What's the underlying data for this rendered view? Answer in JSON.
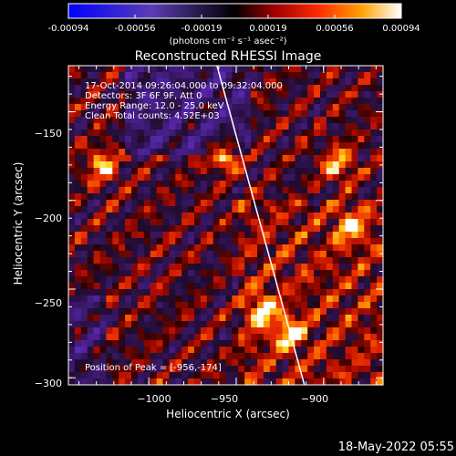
{
  "colorbar": {
    "ticks": [
      "-0.00094",
      "-0.00056",
      "-0.00019",
      "0.00019",
      "0.00056",
      "0.00094"
    ],
    "units": "(photons cm⁻² s⁻¹ asec⁻²)",
    "min": -0.00094,
    "max": 0.00094
  },
  "title": "Reconstructed RHESSI Image",
  "annotation": {
    "time": "17-Oct-2014 09:26:04.000 to 09:32:04.000",
    "detectors": "Detectors: 3F 6F 9F, Att 0",
    "energy": "Energy Range: 12.0 - 25.0 keV",
    "clean": "Clean    Total counts: 4.52E+03",
    "peak": "Position of Peak = [-956,-174]"
  },
  "footer": {
    "timestamp": "18-May-2022 05:55"
  },
  "chart_data": {
    "type": "heatmap",
    "title": "Reconstructed RHESSI Image",
    "xlabel": "Heliocentric X (arcsec)",
    "ylabel": "Heliocentric Y (arcsec)",
    "xlim": [
      -1046,
      -866
    ],
    "ylim": [
      -304,
      -124
    ],
    "xticks": [
      {
        "value": -1000,
        "label": "−1000"
      },
      {
        "value": -950,
        "label": "−950"
      },
      {
        "value": -900,
        "label": "−900"
      }
    ],
    "yticks": [
      {
        "value": -150,
        "label": "−150"
      },
      {
        "value": -200,
        "label": "−200"
      },
      {
        "value": -250,
        "label": "−250"
      },
      {
        "value": -300,
        "label": "−300"
      }
    ],
    "colormap": "red-temperature (negative: purple/blue, positive: red-orange-yellow-white)",
    "peak": {
      "x": -956,
      "y": -174
    },
    "hot_spots": [
      {
        "x": -956,
        "y": -174,
        "intensity": 1.0
      },
      {
        "x": -1027,
        "y": -180,
        "intensity": 0.85
      },
      {
        "x": -891,
        "y": -180,
        "intensity": 0.85
      },
      {
        "x": -935,
        "y": -262,
        "intensity": 0.8
      },
      {
        "x": -920,
        "y": -275,
        "intensity": 0.8
      },
      {
        "x": -885,
        "y": -215,
        "intensity": 0.7
      }
    ],
    "overlay": {
      "type": "solar-limb-line",
      "from": {
        "x": -961,
        "y": -124
      },
      "to": {
        "x": -911,
        "y": -304
      }
    }
  }
}
